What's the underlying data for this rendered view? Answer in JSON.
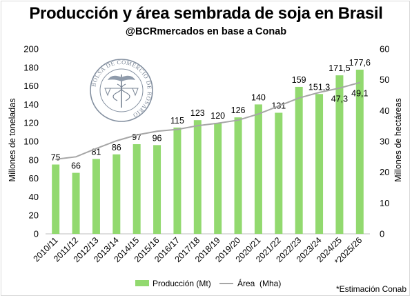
{
  "chart_data": {
    "type": "bar",
    "title": "Producción y área sembrada de soja en Brasil",
    "subtitle": "@BCRmercados en base a Conab",
    "categories": [
      "2010/11",
      "2011/12",
      "2012/13",
      "2013/14",
      "2014/15",
      "2015/16",
      "2016/17",
      "2017/18",
      "2018/19",
      "2019/20",
      "2020/21",
      "2021/22",
      "2022/23",
      "2023/24",
      "2024/25",
      "*2025/26"
    ],
    "series": [
      {
        "name": "Producción (Mt)",
        "type": "bar",
        "axis": "left",
        "color": "#92d96f",
        "values": [
          75,
          66,
          81,
          86,
          97,
          96,
          115,
          123,
          120,
          126,
          140,
          131,
          159,
          151.3,
          171.5,
          177.6
        ],
        "labels": [
          "75",
          "66",
          "81",
          "86",
          "97",
          "96",
          "115",
          "123",
          "120",
          "126",
          "140",
          "131",
          "159",
          "151,3",
          "171,5",
          "177,6"
        ]
      },
      {
        "name": "Área  (Mha)",
        "type": "line",
        "axis": "right",
        "color": "#a6a6a6",
        "values": [
          24.2,
          25.0,
          27.7,
          30.2,
          32.1,
          33.3,
          33.9,
          35.1,
          35.9,
          36.9,
          38.9,
          41.5,
          44.1,
          45.9,
          47.3,
          49.1
        ],
        "labels": [
          "47,3",
          "49,1"
        ],
        "label_indices": [
          14,
          15
        ]
      }
    ],
    "ylabel": "Millones de toneladas",
    "ylim": [
      0,
      200
    ],
    "yticks": [
      0,
      20,
      40,
      60,
      80,
      100,
      120,
      140,
      160,
      180,
      200
    ],
    "y2label": "Millones de hectáreas",
    "y2lim": [
      0,
      60
    ],
    "y2ticks": [
      0,
      10,
      20,
      30,
      40,
      50,
      60
    ],
    "grid": false,
    "legend_position": "bottom"
  },
  "watermark": {
    "text": "BOLSA DE COMERCIO DE ROSARIO"
  },
  "footnote": "*Estimación Conab"
}
